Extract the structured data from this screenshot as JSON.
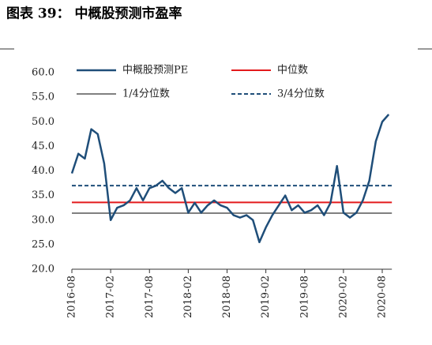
{
  "chart_data": {
    "type": "line",
    "title": "图表 39：  中概股预测市盈率",
    "x": [
      "2016-08",
      "2016-09",
      "2016-10",
      "2016-11",
      "2016-12",
      "2017-01",
      "2017-02",
      "2017-03",
      "2017-04",
      "2017-05",
      "2017-06",
      "2017-07",
      "2017-08",
      "2017-09",
      "2017-10",
      "2017-11",
      "2017-12",
      "2018-01",
      "2018-02",
      "2018-03",
      "2018-04",
      "2018-05",
      "2018-06",
      "2018-07",
      "2018-08",
      "2018-09",
      "2018-10",
      "2018-11",
      "2018-12",
      "2019-01",
      "2019-02",
      "2019-03",
      "2019-04",
      "2019-05",
      "2019-06",
      "2019-07",
      "2019-08",
      "2019-09",
      "2019-10",
      "2019-11",
      "2019-12",
      "2020-01",
      "2020-02",
      "2020-03",
      "2020-04",
      "2020-05",
      "2020-06",
      "2020-07",
      "2020-08",
      "2020-09"
    ],
    "series": [
      {
        "name": "中概股预测PE",
        "color": "#1f4e79",
        "values": [
          39.5,
          43.5,
          42.5,
          48.5,
          47.5,
          41.5,
          30,
          32.5,
          33,
          34,
          36.5,
          34,
          36.5,
          37,
          38,
          36.5,
          35.5,
          36.5,
          31.5,
          33.5,
          31.5,
          33,
          34,
          33,
          32.5,
          31,
          30.5,
          31,
          30,
          25.5,
          28.5,
          31,
          33,
          35,
          32,
          33,
          31.5,
          32,
          33,
          31,
          33.5,
          41,
          31.5,
          30.5,
          31.5,
          34,
          38,
          46,
          50,
          51.5
        ]
      }
    ],
    "reference_lines": [
      {
        "name": "中位数",
        "color": "#e31a1c",
        "value": 33.6,
        "dash": false
      },
      {
        "name": "1/4分位数",
        "color": "#808080",
        "value": 31.4,
        "dash": false
      },
      {
        "name": "3/4分位数",
        "color": "#1f4e79",
        "value": 37.0,
        "dash": true
      }
    ],
    "xticks": [
      "2016-08",
      "2017-02",
      "2017-08",
      "2018-02",
      "2018-08",
      "2019-02",
      "2019-08",
      "2020-02",
      "2020-08"
    ],
    "ylim": [
      20,
      60
    ],
    "yticks": [
      {
        "value": 20,
        "label": "20.0"
      },
      {
        "value": 25,
        "label": "25.0"
      },
      {
        "value": 30,
        "label": "30.0"
      },
      {
        "value": 35,
        "label": "35.0"
      },
      {
        "value": 40,
        "label": "40.0"
      },
      {
        "value": 45,
        "label": "45.0"
      },
      {
        "value": 50,
        "label": "50.0"
      },
      {
        "value": 55,
        "label": "55.0"
      },
      {
        "value": 60,
        "label": "60.0"
      }
    ],
    "grid": false
  }
}
